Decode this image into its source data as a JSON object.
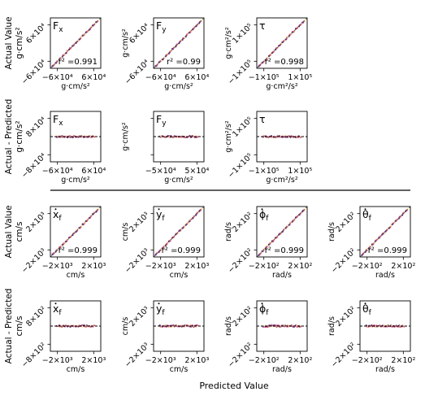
{
  "figure": {
    "x_common_label": "Predicted Value",
    "row_labels": [
      {
        "lines": [
          "Actual Value",
          "g·cm/s²"
        ]
      },
      {
        "lines": [
          "Actual - Predicted",
          "g·cm/s²"
        ]
      },
      {
        "lines": [
          "Actual Value",
          "cm/s"
        ]
      },
      {
        "lines": [
          "Actual - Predicted",
          "cm/s"
        ]
      }
    ]
  },
  "chart_data": [
    {
      "panel": "forces-parity-fx",
      "type": "scatter",
      "title": "F_x",
      "r2": "r² =0.991",
      "xunit": "g·cm/s²",
      "yunit": "",
      "xticks": [
        "−6×10⁴",
        "6×10⁴"
      ],
      "yticks": [
        "6×10⁴",
        "−6×10⁴"
      ],
      "xlim": [
        -75000,
        75000
      ],
      "ylim": [
        -75000,
        75000
      ],
      "reference": "diagonal"
    },
    {
      "panel": "forces-parity-fy",
      "type": "scatter",
      "title": "F_y",
      "r2": "r² =0.99",
      "xunit": "g·cm/s²",
      "yunit": "g·cm/s²",
      "xticks": [
        "−6×10⁴",
        "6×10⁴"
      ],
      "yticks": [
        "6×10⁴",
        "−6×10⁴"
      ],
      "xlim": [
        -75000,
        75000
      ],
      "ylim": [
        -75000,
        75000
      ],
      "reference": "diagonal"
    },
    {
      "panel": "forces-parity-tau",
      "type": "scatter",
      "title": "τ",
      "r2": "r² =0.998",
      "xunit": "g·cm²/s²",
      "yunit": "g·cm²/s²",
      "xticks": [
        "−1×10⁵",
        "1×10⁵"
      ],
      "yticks": [
        "1×10⁵",
        "−1×10⁵"
      ],
      "xlim": [
        -125000,
        125000
      ],
      "ylim": [
        -125000,
        125000
      ],
      "reference": "diagonal"
    },
    {
      "panel": "forces-residual-fx",
      "type": "scatter",
      "title": "F_x",
      "r2": "",
      "xunit": "g·cm/s²",
      "yunit": "",
      "xticks": [
        "−6×10⁴",
        "6×10⁴"
      ],
      "yticks": [
        "8×10⁴",
        "−8×10⁴"
      ],
      "xlim": [
        -75000,
        75000
      ],
      "ylim": [
        -100000,
        100000
      ],
      "reference": "zero"
    },
    {
      "panel": "forces-residual-fy",
      "type": "scatter",
      "title": "F_y",
      "r2": "",
      "xunit": "g·cm/s²",
      "yunit": "g·cm/s²",
      "xticks": [
        "−5×10⁴",
        "5×10⁴"
      ],
      "yticks": [
        "",
        ""
      ],
      "xlim": [
        -75000,
        75000
      ],
      "ylim": [
        -100000,
        100000
      ],
      "reference": "zero"
    },
    {
      "panel": "forces-residual-tau",
      "type": "scatter",
      "title": "τ",
      "r2": "",
      "xunit": "g·cm²/s²",
      "yunit": "g·cm²/s²",
      "xticks": [
        "−1×10⁵",
        "1×10⁵"
      ],
      "yticks": [
        "1×10⁵",
        "−1×10⁵"
      ],
      "xlim": [
        -125000,
        125000
      ],
      "ylim": [
        -125000,
        125000
      ],
      "reference": "zero"
    },
    {
      "panel": "vel-parity-x",
      "type": "scatter",
      "title": "x_f",
      "title_mark": "dot",
      "r2": "r² =0.999",
      "xunit": "cm/s",
      "yunit": "",
      "xticks": [
        "−2×10³",
        "2×10³"
      ],
      "yticks": [
        "2×10³",
        "−2×10³"
      ],
      "xlim": [
        -2500,
        2500
      ],
      "ylim": [
        -2500,
        2500
      ],
      "reference": "diagonal"
    },
    {
      "panel": "vel-parity-y",
      "type": "scatter",
      "title": "y_f",
      "title_mark": "dot",
      "r2": "r² =0.999",
      "xunit": "cm/s",
      "yunit": "cm/s",
      "xticks": [
        "−2×10³",
        "2×10³"
      ],
      "yticks": [
        "2×10³",
        "−2×10³"
      ],
      "xlim": [
        -2500,
        2500
      ],
      "ylim": [
        -2500,
        2500
      ],
      "reference": "diagonal"
    },
    {
      "panel": "vel-parity-phi",
      "type": "scatter",
      "title": "ϕ_f",
      "title_mark": "dot",
      "r2": "r² =0.999",
      "xunit": "rad/s",
      "yunit": "rad/s",
      "xticks": [
        "−2×10²",
        "2×10²"
      ],
      "yticks": [
        "2×10²",
        "−2×10²"
      ],
      "xlim": [
        -250,
        250
      ],
      "ylim": [
        -250,
        250
      ],
      "reference": "diagonal"
    },
    {
      "panel": "vel-parity-theta",
      "type": "scatter",
      "title": "θ_f",
      "title_mark": "dot",
      "r2": "r² =0.999",
      "xunit": "rad/s",
      "yunit": "rad/s",
      "xticks": [
        "−2×10²",
        "2×10²"
      ],
      "yticks": [
        "2×10²",
        "−2×10²"
      ],
      "xlim": [
        -250,
        250
      ],
      "ylim": [
        -250,
        250
      ],
      "reference": "diagonal"
    },
    {
      "panel": "vel-residual-x",
      "type": "scatter",
      "title": "x_f",
      "title_mark": "dot",
      "r2": "",
      "xunit": "cm/s",
      "yunit": "",
      "xticks": [
        "−2×10³",
        "2×10³"
      ],
      "yticks": [
        "8×10²",
        "−8×10²"
      ],
      "xlim": [
        -2500,
        2500
      ],
      "ylim": [
        -1000,
        1000
      ],
      "reference": "zero"
    },
    {
      "panel": "vel-residual-y",
      "type": "scatter",
      "title": "y_f",
      "title_mark": "dot",
      "r2": "",
      "xunit": "cm/s",
      "yunit": "cm/s",
      "xticks": [
        "−2×10³",
        "2×10³"
      ],
      "yticks": [
        "2×10³",
        "−2×10³"
      ],
      "xlim": [
        -2500,
        2500
      ],
      "ylim": [
        -2500,
        2500
      ],
      "reference": "zero"
    },
    {
      "panel": "vel-residual-phi",
      "type": "scatter",
      "title": "ϕ_f",
      "title_mark": "dot",
      "r2": "",
      "xunit": "rad/s",
      "yunit": "rad/s",
      "xticks": [
        "−2×10²",
        "2×10²"
      ],
      "yticks": [
        "2×10²",
        "−2×10²"
      ],
      "xlim": [
        -250,
        250
      ],
      "ylim": [
        -250,
        250
      ],
      "reference": "zero"
    },
    {
      "panel": "vel-residual-theta",
      "type": "scatter",
      "title": "θ_f",
      "title_mark": "dot",
      "r2": "",
      "xunit": "rad/s",
      "yunit": "rad/s",
      "xticks": [
        "−2×10²",
        "2×10²"
      ],
      "yticks": [
        "2×10²",
        "−2×10²"
      ],
      "xlim": [
        -250,
        250
      ],
      "ylim": [
        -250,
        250
      ],
      "reference": "zero"
    }
  ],
  "colors": {
    "palette": [
      "#3b0f70",
      "#8c2981",
      "#de4968",
      "#fe9f6d",
      "#fcfdbf"
    ],
    "reference_line": "#000000"
  }
}
